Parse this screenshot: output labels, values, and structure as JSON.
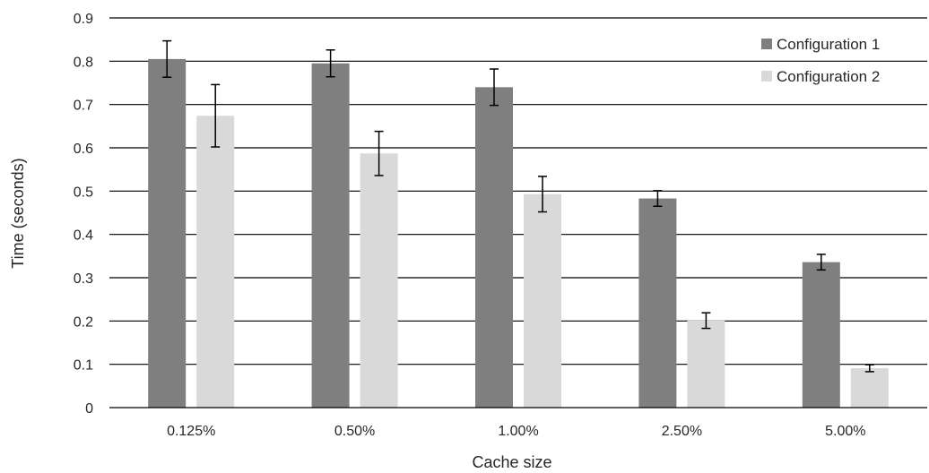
{
  "chart_data": {
    "type": "bar",
    "title": "",
    "xlabel": "Cache size",
    "ylabel": "Time (seconds)",
    "categories": [
      "0.125%",
      "0.50%",
      "1.00%",
      "2.50%",
      "5.00%"
    ],
    "ylim": [
      0,
      0.9
    ],
    "yticks": [
      "0",
      "0.1",
      "0.2",
      "0.3",
      "0.4",
      "0.5",
      "0.6",
      "0.7",
      "0.8",
      "0.9"
    ],
    "grid": true,
    "legend_position": "top-right",
    "series": [
      {
        "name": "Configuration 1",
        "color": "#7f7f7f",
        "values": [
          0.805,
          0.795,
          0.74,
          0.483,
          0.336
        ],
        "errors": [
          0.042,
          0.031,
          0.042,
          0.018,
          0.018
        ]
      },
      {
        "name": "Configuration 2",
        "color": "#d9d9d9",
        "values": [
          0.674,
          0.587,
          0.493,
          0.201,
          0.091
        ],
        "errors": [
          0.072,
          0.051,
          0.041,
          0.018,
          0.008
        ]
      }
    ]
  }
}
